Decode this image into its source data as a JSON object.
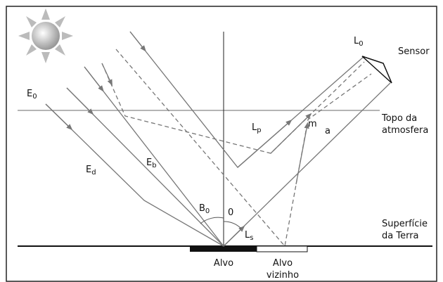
{
  "labels": {
    "e0": {
      "main": "E",
      "sub": "0"
    },
    "ed": {
      "main": "E",
      "sub": "d"
    },
    "eb": {
      "main": "E",
      "sub": "b"
    },
    "b0": {
      "main": "B",
      "sub": "0"
    },
    "theta": "0",
    "ls": {
      "main": "L",
      "sub": "s"
    },
    "lp": {
      "main": "L",
      "sub": "p"
    },
    "m": "m",
    "a": "a",
    "l0": {
      "main": "L",
      "sub": "0"
    },
    "sensor": "Sensor",
    "top_atmosphere": [
      "Topo da",
      "atmosfera"
    ],
    "earth_surface": [
      "Superfície",
      "da Terra"
    ],
    "target": "Alvo",
    "neighbor_target": [
      "Alvo",
      "vizinho"
    ]
  }
}
